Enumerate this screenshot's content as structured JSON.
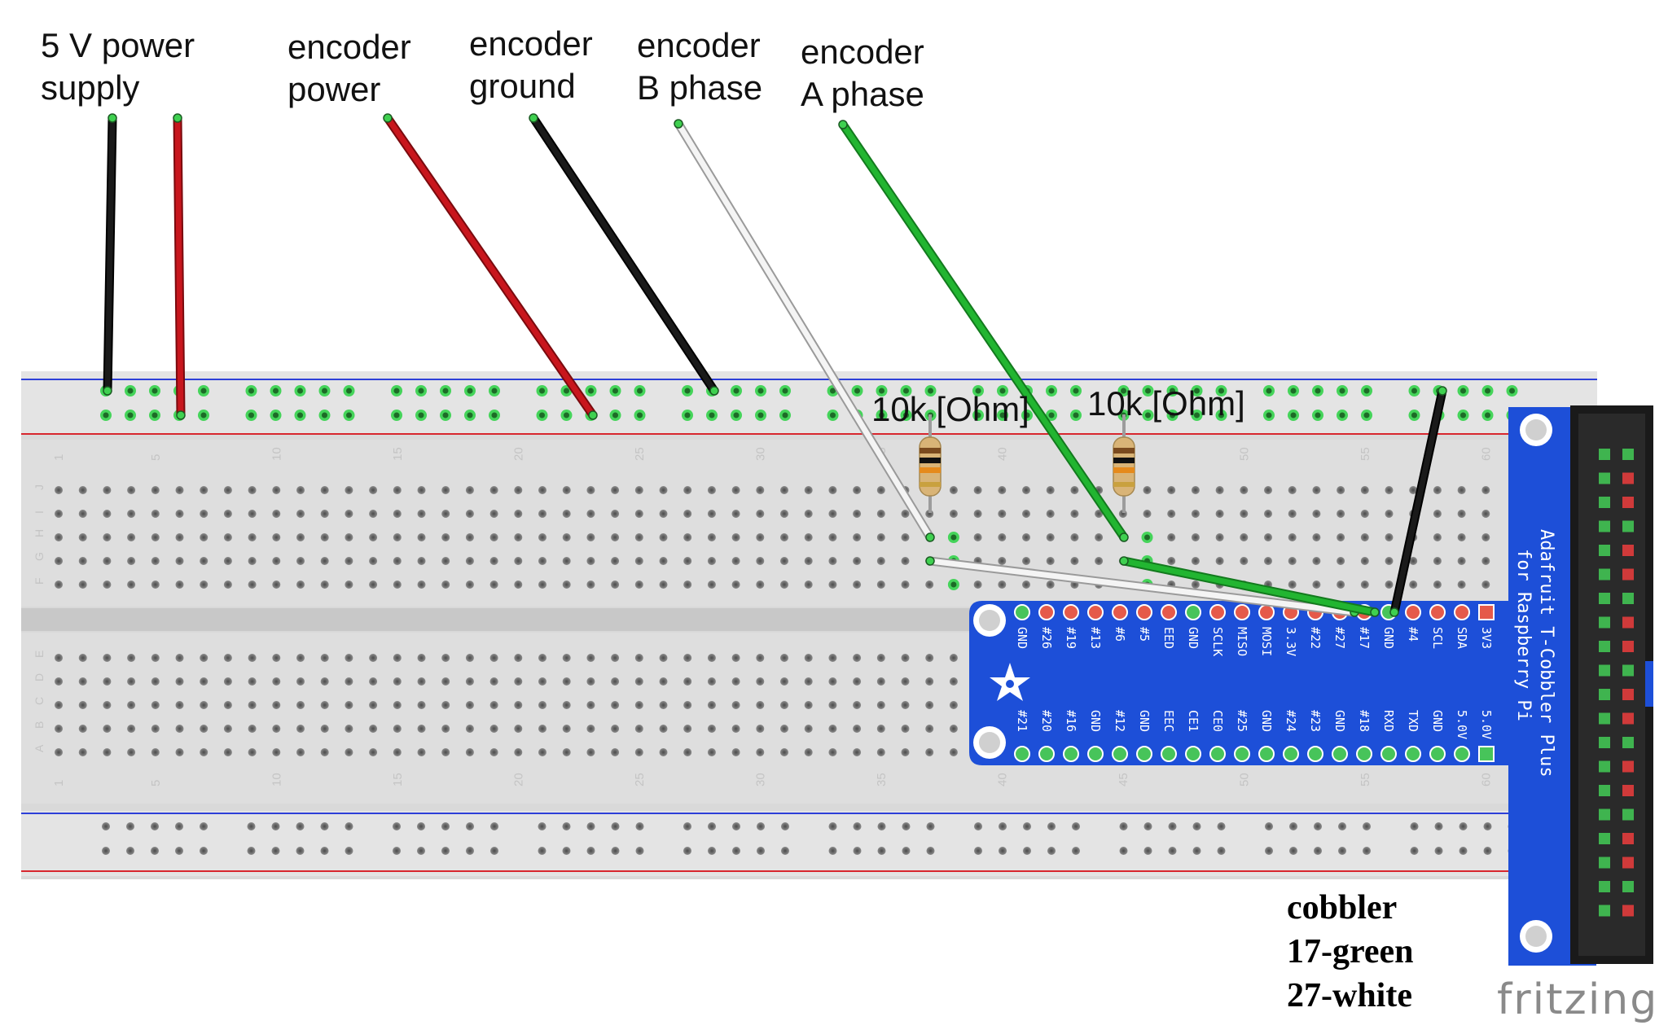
{
  "labels": {
    "power_supply": [
      "5 V power",
      "supply"
    ],
    "encoder_power": [
      "encoder",
      "power"
    ],
    "encoder_ground": [
      "encoder",
      "ground"
    ],
    "encoder_b": [
      "encoder",
      "B phase"
    ],
    "encoder_a": [
      "encoder",
      "A phase"
    ]
  },
  "resistors": [
    {
      "label": "10k [Ohm]"
    },
    {
      "label": "10k [Ohm]"
    }
  ],
  "note": [
    "cobbler",
    "17-green",
    "27-white"
  ],
  "breadboard": {
    "column_numbers": [
      "1",
      "5",
      "10",
      "15",
      "20",
      "25",
      "30",
      "35",
      "40",
      "45",
      "50",
      "55",
      "60"
    ],
    "rows_top": [
      "J",
      "I",
      "H",
      "G",
      "F"
    ],
    "rows_bottom": [
      "E",
      "D",
      "C",
      "B",
      "A"
    ]
  },
  "cobbler": {
    "title": [
      "Adafruit T-Cobbler Plus",
      "for Raspberry Pi"
    ],
    "top_pins": [
      "GND",
      "#26",
      "#19",
      "#13",
      "#6",
      "#5",
      "EED",
      "GND",
      "SCLK",
      "MISO",
      "MOSI",
      "3.3V",
      "#22",
      "#27",
      "#17",
      "GND",
      "#4",
      "SCL",
      "SDA",
      "3V3"
    ],
    "bottom_pins": [
      "#21",
      "#20",
      "#16",
      "GND",
      "#12",
      "GND",
      "EEC",
      "CE1",
      "CE0",
      "#25",
      "GND",
      "#24",
      "#23",
      "GND",
      "#18",
      "RXD",
      "TXD",
      "GND",
      "5.0V",
      "5.0V"
    ]
  },
  "wire_colors": {
    "black": "#1a1a1a",
    "red": "#c8161d",
    "green": "#22b531",
    "white": "#f4f4f4",
    "rail_blue": "#2d3fd8",
    "rail_red": "#d8262e",
    "cobbler_blue": "#1d4fd8"
  },
  "brand": "fritzing"
}
